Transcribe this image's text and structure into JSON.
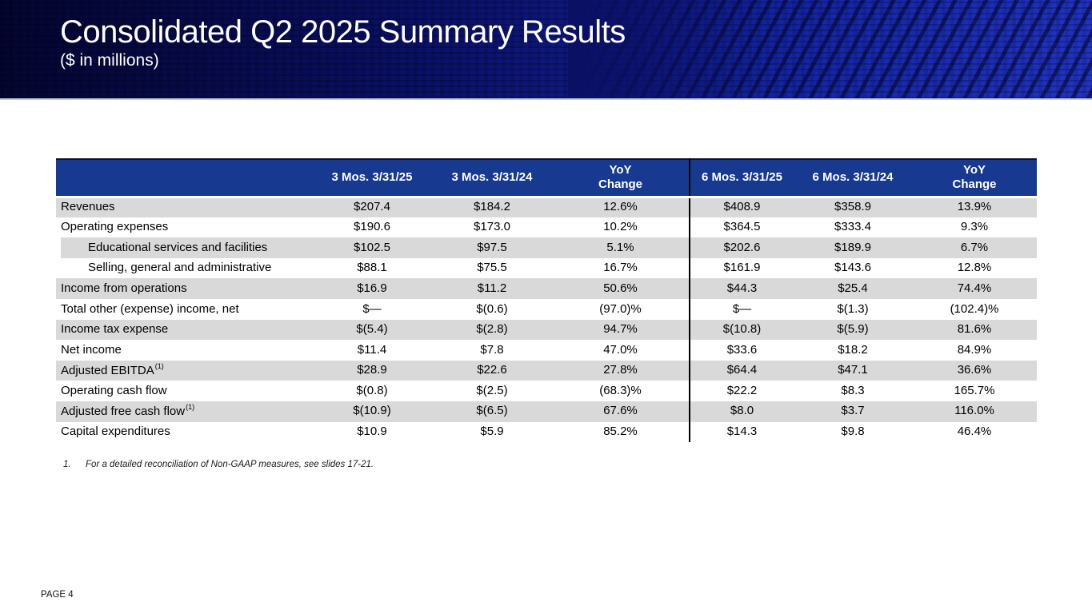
{
  "header": {
    "title": "Consolidated Q2 2025 Summary Results",
    "subtitle": "($ in millions)"
  },
  "table": {
    "columns": [
      "",
      "3 Mos. 3/31/25",
      "3 Mos. 3/31/24",
      "YoY\nChange",
      "6 Mos. 3/31/25",
      "6 Mos. 3/31/24",
      "YoY\nChange"
    ],
    "rows": [
      {
        "label": "Revenues",
        "sup": "",
        "indent": false,
        "shaded": true,
        "values": [
          "$207.4",
          "$184.2",
          "12.6%",
          "$408.9",
          "$358.9",
          "13.9%"
        ]
      },
      {
        "label": "Operating expenses",
        "sup": "",
        "indent": false,
        "shaded": false,
        "values": [
          "$190.6",
          "$173.0",
          "10.2%",
          "$364.5",
          "$333.4",
          "9.3%"
        ]
      },
      {
        "label": "Educational services and facilities",
        "sup": "",
        "indent": true,
        "shaded": true,
        "values": [
          "$102.5",
          "$97.5",
          "5.1%",
          "$202.6",
          "$189.9",
          "6.7%"
        ]
      },
      {
        "label": "Selling, general and administrative",
        "sup": "",
        "indent": true,
        "shaded": false,
        "values": [
          "$88.1",
          "$75.5",
          "16.7%",
          "$161.9",
          "$143.6",
          "12.8%"
        ]
      },
      {
        "label": "Income from operations",
        "sup": "",
        "indent": false,
        "shaded": true,
        "values": [
          "$16.9",
          "$11.2",
          "50.6%",
          "$44.3",
          "$25.4",
          "74.4%"
        ]
      },
      {
        "label": "Total other (expense) income, net",
        "sup": "",
        "indent": false,
        "shaded": false,
        "values": [
          "$—",
          "$(0.6)",
          "(97.0)%",
          "$—",
          "$(1.3)",
          "(102.4)%"
        ]
      },
      {
        "label": "Income tax expense",
        "sup": "",
        "indent": false,
        "shaded": true,
        "values": [
          "$(5.4)",
          "$(2.8)",
          "94.7%",
          "$(10.8)",
          "$(5.9)",
          "81.6%"
        ]
      },
      {
        "label": "Net income",
        "sup": "",
        "indent": false,
        "shaded": false,
        "values": [
          "$11.4",
          "$7.8",
          "47.0%",
          "$33.6",
          "$18.2",
          "84.9%"
        ]
      },
      {
        "label": "Adjusted EBITDA",
        "sup": "(1)",
        "indent": false,
        "shaded": true,
        "values": [
          "$28.9",
          "$22.6",
          "27.8%",
          "$64.4",
          "$47.1",
          "36.6%"
        ]
      },
      {
        "label": "Operating cash flow",
        "sup": "",
        "indent": false,
        "shaded": false,
        "values": [
          "$(0.8)",
          "$(2.5)",
          "(68.3)%",
          "$22.2",
          "$8.3",
          "165.7%"
        ]
      },
      {
        "label": "Adjusted free cash flow",
        "sup": "(1)",
        "indent": false,
        "shaded": true,
        "values": [
          "$(10.9)",
          "$(6.5)",
          "67.6%",
          "$8.0",
          "$3.7",
          "116.0%"
        ]
      },
      {
        "label": "Capital expenditures",
        "sup": "",
        "indent": false,
        "shaded": false,
        "values": [
          "$10.9",
          "$5.9",
          "85.2%",
          "$14.3",
          "$9.8",
          "46.4%"
        ]
      }
    ]
  },
  "footnote": {
    "number": "1.",
    "text": "For a detailed reconciliation of Non-GAAP measures, see slides 17-21."
  },
  "footer": {
    "page_label": "PAGE 4"
  },
  "colors": {
    "table_header_bar": "#17398f",
    "row_shade": "#d9d9d9",
    "banner_dark": "#04052f",
    "banner_bright": "#2133c0",
    "divider_line": "#000000"
  }
}
